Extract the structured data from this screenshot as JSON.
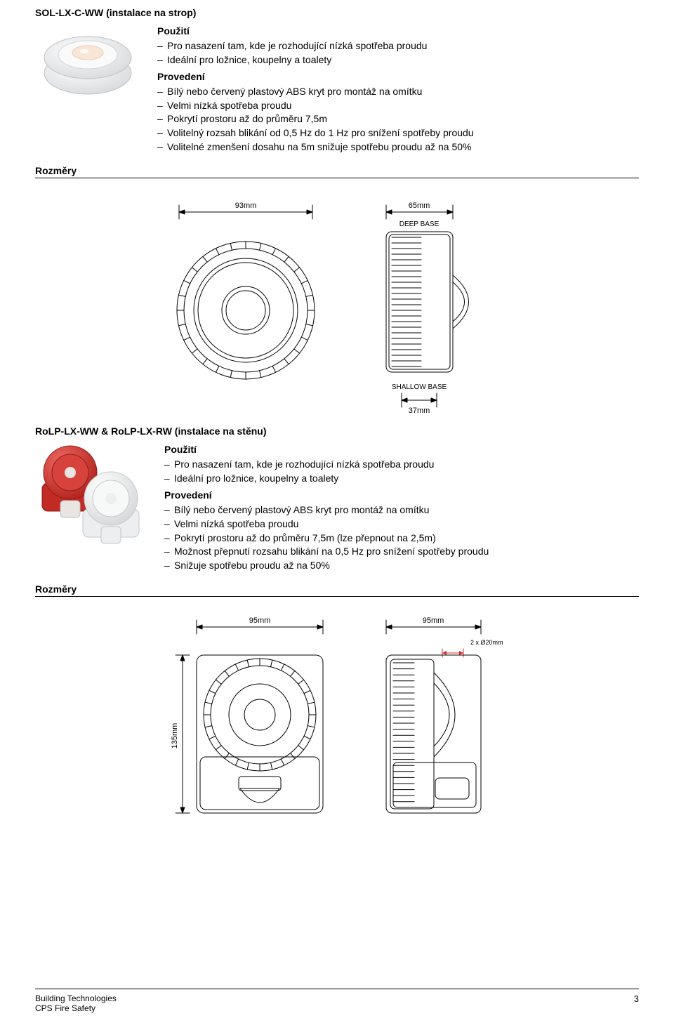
{
  "section1": {
    "title": "SOL-LX-C-WW (instalace na strop)",
    "image": {
      "body_color": "#f3f4f5",
      "accent_color": "#f8d7bd"
    },
    "use_head": "Použití",
    "use": [
      "Pro nasazení tam, kde je rozhodující nízká spotřeba proudu",
      "Ideální pro ložnice, koupelny a toalety"
    ],
    "exec_head": "Provedení",
    "exec": [
      "Bílý nebo červený plastový ABS kryt pro montáž na omítku",
      "Velmi nízká spotřeba proudu",
      "Pokrytí prostoru až do průměru 7,5m",
      "Volitelný rozsah blikání od 0,5 Hz do 1 Hz pro snížení spotřeby proudu",
      "Volitelné zmenšení dosahu na 5m snižuje spotřebu proudu až na 50%"
    ]
  },
  "rozmery_label": "Rozměry",
  "diagram1": {
    "w_front_label": "93mm",
    "w_side_label": "65mm",
    "deep_base": "DEEP BASE",
    "shallow_base": "SHALLOW BASE",
    "shallow_dim": "37mm",
    "stroke": "#000000",
    "fill": "#ffffff",
    "font_size": 11
  },
  "section2": {
    "title": "RoLP-LX-WW & RoLP-LX-RW (instalace na stěnu)",
    "image": {
      "red": "#d32e29",
      "white": "#f0f1f2"
    },
    "use_head": "Použití",
    "use": [
      "Pro nasazení tam, kde je rozhodující nízká spotřeba proudu",
      "Ideální pro ložnice, koupelny a toalety"
    ],
    "exec_head": "Provedení",
    "exec": [
      "Bílý nebo červený plastový ABS kryt pro montáž na omítku",
      "Velmi nízká spotřeba proudu",
      "Pokrytí prostoru až do průměru 7,5m (lze přepnout na 2,5m)",
      "Možnost přepnutí rozsahu blikání na 0,5 Hz pro snížení spotřeby proudu",
      "Snižuje spotřebu proudu až na 50%"
    ]
  },
  "diagram2": {
    "w_front_label": "95mm",
    "w_side_label": "95mm",
    "h_label": "135mm",
    "hole_label": "2 x Ø20mm",
    "stroke": "#000000",
    "red": "#d32e29",
    "font_size": 11
  },
  "footer": {
    "l1": "Building Technologies",
    "l2": "CPS Fire Safety",
    "page": "3"
  }
}
